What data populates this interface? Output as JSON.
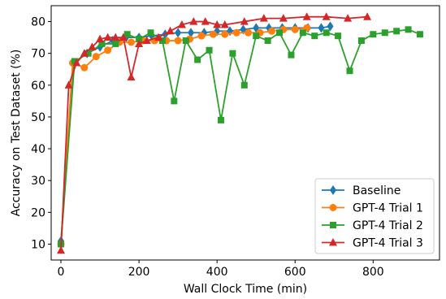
{
  "chart_data": {
    "type": "line",
    "title": "",
    "xlabel": "Wall Clock Time (min)",
    "ylabel": "Accuracy on Test Dataset (%)",
    "xlim": [
      -25,
      970
    ],
    "ylim": [
      5,
      85
    ],
    "xticks": [
      0,
      200,
      400,
      600,
      800
    ],
    "yticks": [
      10,
      20,
      30,
      40,
      50,
      60,
      70,
      80
    ],
    "grid": false,
    "legend_position": "bottom-right",
    "series": [
      {
        "name": "Baseline",
        "color": "#1f77b4",
        "marker": "diamond",
        "x": [
          0,
          33,
          67,
          100,
          133,
          167,
          200,
          233,
          267,
          300,
          333,
          367,
          400,
          433,
          467,
          500,
          533,
          567,
          600,
          633,
          667,
          690
        ],
        "y": [
          11,
          67,
          70,
          72,
          74,
          75,
          75,
          75.5,
          76,
          76.5,
          76.5,
          76.5,
          77,
          77,
          77.5,
          78,
          78,
          78,
          78,
          78,
          78,
          78.5
        ]
      },
      {
        "name": "GPT-4 Trial 1",
        "color": "#ff7f0e",
        "marker": "circle",
        "x": [
          0,
          30,
          60,
          90,
          120,
          150,
          180,
          210,
          240,
          270,
          300,
          330,
          360,
          390,
          420,
          450,
          480,
          510,
          540,
          570,
          600,
          630
        ],
        "y": [
          10,
          67,
          65.5,
          69,
          71,
          73.5,
          73.5,
          74,
          74,
          74,
          74,
          74.5,
          75.5,
          76,
          76,
          76.5,
          76.5,
          76.5,
          77,
          77.5,
          77.5,
          78
        ]
      },
      {
        "name": "GPT-4 Trial 2",
        "color": "#2ca02c",
        "marker": "square",
        "x": [
          0,
          35,
          70,
          105,
          140,
          170,
          200,
          230,
          260,
          290,
          320,
          350,
          380,
          410,
          440,
          470,
          500,
          530,
          560,
          590,
          620,
          650,
          680,
          710,
          740,
          770,
          800,
          830,
          860,
          890,
          920
        ],
        "y": [
          10,
          67.5,
          70,
          73,
          73,
          76,
          74.5,
          76.5,
          74,
          55,
          74,
          68,
          71,
          49,
          70,
          60,
          75.5,
          74,
          76.5,
          69.5,
          76.5,
          75.5,
          76.5,
          75.5,
          64.5,
          74,
          76,
          76.5,
          77,
          77.5,
          76
        ]
      },
      {
        "name": "GPT-4 Trial 3",
        "color": "#d62728",
        "marker": "triangle",
        "x": [
          0,
          20,
          40,
          60,
          80,
          100,
          120,
          140,
          160,
          180,
          200,
          220,
          250,
          280,
          310,
          340,
          370,
          400,
          420,
          470,
          520,
          570,
          630,
          680,
          735,
          785
        ],
        "y": [
          8,
          60,
          67,
          70,
          72,
          74.5,
          75,
          75,
          75,
          62.5,
          73,
          74,
          75,
          77,
          79,
          80,
          80,
          79,
          79,
          80,
          81,
          81,
          81.5,
          81.5,
          81,
          81.5
        ]
      }
    ]
  }
}
